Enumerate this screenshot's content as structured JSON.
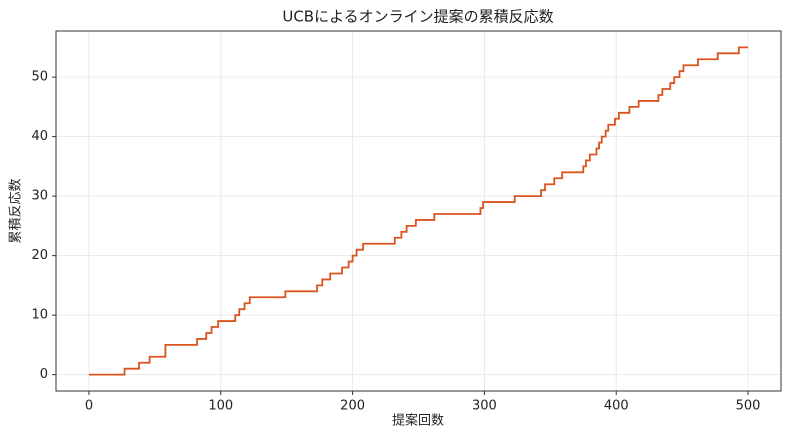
{
  "chart_data": {
    "type": "step",
    "title": "UCBによるオンライン提案の累積反応数",
    "x_label": "提案回数",
    "y_label": "累積反応数",
    "x": [
      0,
      27,
      38,
      46,
      58,
      82,
      89,
      93,
      98,
      111,
      114,
      118,
      122,
      149,
      173,
      177,
      183,
      192,
      197,
      200,
      203,
      208,
      232,
      237,
      241,
      248,
      262,
      297,
      299,
      323,
      343,
      346,
      353,
      359,
      375,
      377,
      380,
      385,
      387,
      389,
      392,
      394,
      399,
      402,
      410,
      417,
      432,
      435,
      441,
      444,
      448,
      451,
      462,
      477,
      493,
      500
    ],
    "values": [
      0,
      1,
      2,
      3,
      5,
      6,
      7,
      8,
      9,
      10,
      11,
      12,
      13,
      14,
      15,
      16,
      17,
      18,
      19,
      20,
      21,
      22,
      23,
      24,
      25,
      26,
      27,
      28,
      29,
      30,
      31,
      32,
      33,
      34,
      35,
      36,
      37,
      38,
      39,
      40,
      41,
      42,
      43,
      44,
      45,
      46,
      47,
      48,
      49,
      50,
      51,
      52,
      53,
      54,
      55,
      55
    ],
    "color": "#d9541e",
    "xlim": [
      -25,
      525
    ],
    "xticks": [
      0,
      100,
      200,
      300,
      400,
      500
    ],
    "ylim": [
      -2.75,
      57.75
    ],
    "yticks": [
      0,
      10,
      20,
      30,
      40,
      50
    ],
    "grid": true
  }
}
